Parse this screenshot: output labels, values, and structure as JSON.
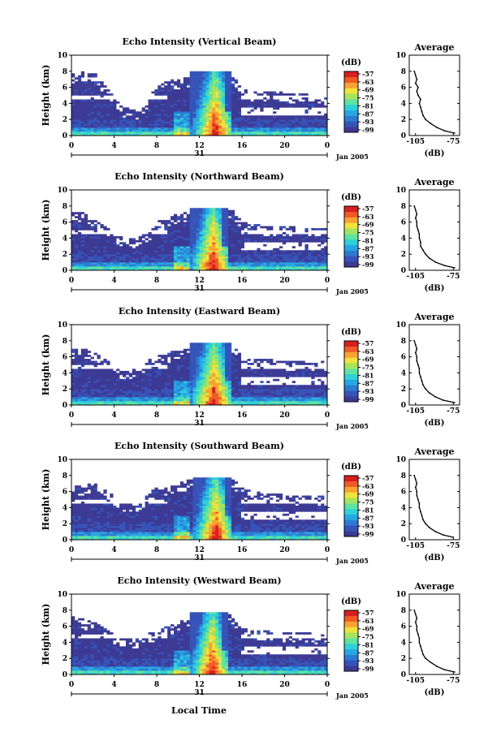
{
  "palette": [
    "#3d3a94",
    "#3553b8",
    "#2d7ad2",
    "#26a6e2",
    "#2fd0d8",
    "#5fe3a0",
    "#a6e35f",
    "#f0e23c",
    "#f7a332",
    "#ef5a26",
    "#d81f1f"
  ],
  "chart_data": [
    {
      "type": "heatmap",
      "title": "Echo Intensity (Vertical Beam)",
      "ylabel": "Height (km)",
      "xticks": [
        "0",
        "4",
        "8",
        "12",
        "16",
        "20",
        "0"
      ],
      "yticks": [
        "0",
        "2",
        "4",
        "6",
        "8",
        "10"
      ],
      "xlim": [
        0,
        24
      ],
      "ylim": [
        0,
        10
      ],
      "day_label": "31",
      "month_label": "Jan 2005",
      "colorbar": {
        "unit": "(dB)",
        "ticks": [
          "-57",
          "-63",
          "-69",
          "-75",
          "-81",
          "-87",
          "-93",
          "-99"
        ]
      },
      "cloud_tops_km": [
        7.8,
        7.9,
        8.0,
        6.6,
        4.8,
        3.5,
        3.2,
        4.0,
        6.5,
        6.8,
        7.0,
        7.2,
        8.0,
        8.0,
        8.0,
        8.0,
        5.8,
        5.5,
        5.5,
        5.5,
        5.4,
        5.2,
        5.2,
        5.0,
        5.0
      ],
      "convection": {
        "start_hour": 11.2,
        "end_hour": 15.0,
        "top_km": 8.0
      },
      "average_profile": {
        "title": "Average",
        "xlabel": "(dB)",
        "xticks": [
          "-105",
          "-75"
        ],
        "xlim": [
          -110,
          -70
        ],
        "yticks": [
          "0",
          "2",
          "4",
          "6",
          "8",
          "10"
        ],
        "ylim": [
          0,
          10
        ],
        "height_km": [
          0.3,
          0.6,
          1.0,
          1.5,
          2.0,
          2.5,
          3.0,
          3.5,
          4.0,
          4.5,
          5.0,
          5.5,
          6.0,
          6.5,
          7.0,
          7.5,
          8.0
        ],
        "db": [
          -74,
          -82,
          -88,
          -93,
          -97,
          -99,
          -100,
          -101,
          -102,
          -101,
          -103,
          -104,
          -103,
          -105,
          -104,
          -105,
          -106
        ]
      }
    },
    {
      "type": "heatmap",
      "title": "Echo Intensity (Northward Beam)",
      "ylabel": "Height (km)",
      "xticks": [
        "0",
        "4",
        "8",
        "12",
        "16",
        "20",
        "0"
      ],
      "yticks": [
        "0",
        "2",
        "4",
        "6",
        "8",
        "10"
      ],
      "xlim": [
        0,
        24
      ],
      "ylim": [
        0,
        10
      ],
      "day_label": "31",
      "month_label": "Jan 2005",
      "colorbar": {
        "unit": "(dB)",
        "ticks": [
          "-57",
          "-63",
          "-69",
          "-75",
          "-81",
          "-87",
          "-93",
          "-99"
        ]
      },
      "cloud_tops_km": [
        7.5,
        7.2,
        6.5,
        5.5,
        4.8,
        3.8,
        4.0,
        4.5,
        6.0,
        6.5,
        7.0,
        7.2,
        7.8,
        7.8,
        7.8,
        7.8,
        6.0,
        5.8,
        5.5,
        5.5,
        5.5,
        5.4,
        5.3,
        5.2,
        5.2
      ],
      "convection": {
        "start_hour": 11.0,
        "end_hour": 14.8,
        "top_km": 7.8
      },
      "average_profile": {
        "title": "Average",
        "xlabel": "(dB)",
        "xticks": [
          "-105",
          "-75"
        ],
        "xlim": [
          -110,
          -70
        ],
        "yticks": [
          "0",
          "2",
          "4",
          "6",
          "8",
          "10"
        ],
        "ylim": [
          0,
          10
        ],
        "height_km": [
          0.3,
          0.6,
          1.0,
          1.5,
          2.0,
          2.5,
          3.0,
          3.5,
          4.0,
          4.5,
          5.0,
          5.5,
          6.0,
          6.5,
          7.0,
          7.5,
          8.0
        ],
        "db": [
          -74,
          -82,
          -89,
          -94,
          -97,
          -99,
          -101,
          -101,
          -102,
          -102,
          -103,
          -104,
          -104,
          -105,
          -104,
          -105,
          -106
        ]
      }
    },
    {
      "type": "heatmap",
      "title": "Echo Intensity (Eastward Beam)",
      "ylabel": "Height (km)",
      "xticks": [
        "0",
        "4",
        "8",
        "12",
        "16",
        "20",
        "0"
      ],
      "yticks": [
        "0",
        "2",
        "4",
        "6",
        "8",
        "10"
      ],
      "xlim": [
        0,
        24
      ],
      "ylim": [
        0,
        10
      ],
      "day_label": "31",
      "month_label": "Jan 2005",
      "colorbar": {
        "unit": "(dB)",
        "ticks": [
          "-57",
          "-63",
          "-69",
          "-75",
          "-81",
          "-87",
          "-93",
          "-99"
        ]
      },
      "cloud_tops_km": [
        7.0,
        7.0,
        6.8,
        6.0,
        5.0,
        4.2,
        4.5,
        5.5,
        6.0,
        6.5,
        6.8,
        7.0,
        7.8,
        7.8,
        7.8,
        7.8,
        6.0,
        5.8,
        5.8,
        5.6,
        5.5,
        5.5,
        5.4,
        5.3,
        5.5
      ],
      "convection": {
        "start_hour": 11.0,
        "end_hour": 15.0,
        "top_km": 7.8
      },
      "average_profile": {
        "title": "Average",
        "xlabel": "(dB)",
        "xticks": [
          "-105",
          "-75"
        ],
        "xlim": [
          -110,
          -70
        ],
        "yticks": [
          "0",
          "2",
          "4",
          "6",
          "8",
          "10"
        ],
        "ylim": [
          0,
          10
        ],
        "height_km": [
          0.3,
          0.6,
          1.0,
          1.5,
          2.0,
          2.5,
          3.0,
          3.5,
          4.0,
          4.5,
          5.0,
          5.5,
          6.0,
          6.5,
          7.0,
          7.5,
          8.0
        ],
        "db": [
          -74,
          -83,
          -89,
          -94,
          -97,
          -99,
          -100,
          -101,
          -102,
          -102,
          -103,
          -104,
          -104,
          -105,
          -104,
          -105,
          -106
        ]
      }
    },
    {
      "type": "heatmap",
      "title": "Echo Intensity (Southward Beam)",
      "ylabel": "Height (km)",
      "xticks": [
        "0",
        "4",
        "8",
        "12",
        "16",
        "20",
        "0"
      ],
      "yticks": [
        "0",
        "2",
        "4",
        "6",
        "8",
        "10"
      ],
      "xlim": [
        0,
        24
      ],
      "ylim": [
        0,
        10
      ],
      "day_label": "31",
      "month_label": "Jan 2005",
      "colorbar": {
        "unit": "(dB)",
        "ticks": [
          "-57",
          "-63",
          "-69",
          "-75",
          "-81",
          "-87",
          "-93",
          "-99"
        ]
      },
      "cloud_tops_km": [
        6.5,
        6.8,
        7.0,
        6.5,
        5.5,
        4.5,
        4.5,
        5.5,
        6.5,
        6.8,
        7.0,
        7.5,
        7.8,
        7.8,
        7.8,
        7.8,
        6.5,
        6.0,
        5.8,
        5.8,
        5.6,
        5.5,
        5.5,
        5.4,
        5.5
      ],
      "convection": {
        "start_hour": 11.3,
        "end_hour": 15.0,
        "top_km": 7.8
      },
      "average_profile": {
        "title": "Average",
        "xlabel": "(dB)",
        "xticks": [
          "-105",
          "-75"
        ],
        "xlim": [
          -110,
          -70
        ],
        "yticks": [
          "0",
          "2",
          "4",
          "6",
          "8",
          "10"
        ],
        "ylim": [
          0,
          10
        ],
        "height_km": [
          0.3,
          0.6,
          1.0,
          1.5,
          2.0,
          2.5,
          3.0,
          3.5,
          4.0,
          4.5,
          5.0,
          5.5,
          6.0,
          6.5,
          7.0,
          7.5,
          8.0
        ],
        "db": [
          -75,
          -83,
          -89,
          -94,
          -97,
          -99,
          -100,
          -101,
          -102,
          -102,
          -103,
          -104,
          -104,
          -105,
          -104,
          -105,
          -106
        ]
      }
    },
    {
      "type": "heatmap",
      "title": "Echo Intensity (Westward Beam)",
      "ylabel": "Height (km)",
      "xticks": [
        "0",
        "4",
        "8",
        "12",
        "16",
        "20",
        "0"
      ],
      "yticks": [
        "0",
        "2",
        "4",
        "6",
        "8",
        "10"
      ],
      "xlim": [
        0,
        24
      ],
      "ylim": [
        0,
        10
      ],
      "day_label": "31",
      "month_label": "Jan 2005",
      "colorbar": {
        "unit": "(dB)",
        "ticks": [
          "-57",
          "-63",
          "-69",
          "-75",
          "-81",
          "-87",
          "-93",
          "-99"
        ]
      },
      "cloud_tops_km": [
        7.2,
        7.0,
        6.5,
        6.2,
        5.0,
        4.5,
        4.5,
        5.0,
        5.5,
        6.0,
        6.5,
        7.0,
        7.8,
        7.8,
        7.8,
        7.8,
        5.8,
        5.6,
        5.5,
        5.4,
        5.3,
        5.2,
        5.2,
        5.0,
        5.2
      ],
      "convection": {
        "start_hour": 11.0,
        "end_hour": 14.6,
        "top_km": 7.8
      },
      "average_profile": {
        "title": "Average",
        "xlabel": "(dB)",
        "xticks": [
          "-105",
          "-75"
        ],
        "xlim": [
          -110,
          -70
        ],
        "yticks": [
          "0",
          "2",
          "4",
          "6",
          "8",
          "10"
        ],
        "ylim": [
          0,
          10
        ],
        "height_km": [
          0.3,
          0.6,
          1.0,
          1.5,
          2.0,
          2.5,
          3.0,
          3.5,
          4.0,
          4.5,
          5.0,
          5.5,
          6.0,
          6.5,
          7.0,
          7.5,
          8.0
        ],
        "db": [
          -74,
          -82,
          -88,
          -93,
          -97,
          -99,
          -100,
          -101,
          -102,
          -102,
          -103,
          -104,
          -104,
          -105,
          -104,
          -105,
          -106
        ]
      }
    }
  ],
  "shared_xlabel": "Local Time"
}
